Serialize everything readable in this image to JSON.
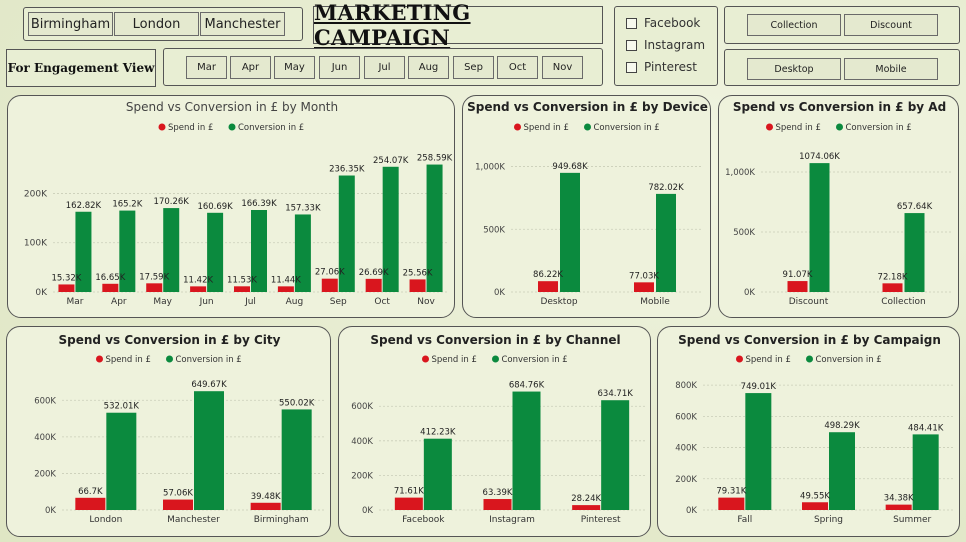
{
  "header": {
    "title": "MARKETING CAMPAIGN",
    "engagement_label": "For Engagement View"
  },
  "filters": {
    "cities": [
      "Birmingham",
      "London",
      "Manchester"
    ],
    "months": [
      "Mar",
      "Apr",
      "May",
      "Jun",
      "Jul",
      "Aug",
      "Sep",
      "Oct",
      "Nov"
    ],
    "channels": [
      "Facebook",
      "Instagram",
      "Pinterest"
    ],
    "ads": [
      "Collection",
      "Discount"
    ],
    "devices": [
      "Desktop",
      "Mobile"
    ]
  },
  "colors": {
    "spend": "#d9161e",
    "conversion": "#0b8a3e"
  },
  "legend": {
    "spend": "Spend in £",
    "conversion": "Conversion in £"
  },
  "chart_data": [
    {
      "type": "bar",
      "title": "Spend vs Conversion in £ by Month",
      "categories": [
        "Mar",
        "Apr",
        "May",
        "Jun",
        "Jul",
        "Aug",
        "Sep",
        "Oct",
        "Nov"
      ],
      "series": [
        {
          "name": "Spend in £",
          "values": [
            15320,
            16650,
            17590,
            11420,
            11530,
            11440,
            27060,
            26690,
            25560
          ],
          "labels": [
            "15.32K",
            "16.65K",
            "17.59K",
            "11.42K",
            "11.53K",
            "11.44K",
            "27.06K",
            "26.69K",
            "25.56K"
          ]
        },
        {
          "name": "Conversion in £",
          "values": [
            162820,
            165200,
            170260,
            160690,
            166390,
            157330,
            236350,
            254070,
            258590
          ],
          "labels": [
            "162.82K",
            "165.2K",
            "170.26K",
            "160.69K",
            "166.39K",
            "157.33K",
            "236.35K",
            "254.07K",
            "258.59K"
          ]
        }
      ],
      "ylim": [
        0,
        280000
      ],
      "yticks": [
        0,
        100000,
        200000
      ],
      "yticklabels": [
        "0K",
        "100K",
        "200K"
      ],
      "grid": true,
      "legend_position": "top-center"
    },
    {
      "type": "bar",
      "title": "Spend vs Conversion in £ by Device",
      "categories": [
        "Desktop",
        "Mobile"
      ],
      "series": [
        {
          "name": "Spend in £",
          "values": [
            86220,
            77030
          ],
          "labels": [
            "86.22K",
            "77.03K"
          ]
        },
        {
          "name": "Conversion in £",
          "values": [
            949680,
            782020
          ],
          "labels": [
            "949.68K",
            "782.02K"
          ]
        }
      ],
      "ylim": [
        0,
        1100000
      ],
      "yticks": [
        0,
        500000,
        1000000
      ],
      "yticklabels": [
        "0K",
        "500K",
        "1,000K"
      ],
      "grid": true,
      "legend_position": "top-center"
    },
    {
      "type": "bar",
      "title": "Spend vs Conversion in £ by Ad",
      "categories": [
        "Discount",
        "Collection"
      ],
      "series": [
        {
          "name": "Spend in £",
          "values": [
            91070,
            72180
          ],
          "labels": [
            "91.07K",
            "72.18K"
          ]
        },
        {
          "name": "Conversion in £",
          "values": [
            1074060,
            657640
          ],
          "labels": [
            "1074.06K",
            "657.64K"
          ]
        }
      ],
      "ylim": [
        0,
        1150000
      ],
      "yticks": [
        0,
        500000,
        1000000
      ],
      "yticklabels": [
        "0K",
        "500K",
        "1,000K"
      ],
      "grid": true,
      "legend_position": "top-center"
    },
    {
      "type": "bar",
      "title": "Spend vs Conversion in £ by City",
      "categories": [
        "London",
        "Manchester",
        "Birmingham"
      ],
      "series": [
        {
          "name": "Spend in £",
          "values": [
            66700,
            57060,
            39480
          ],
          "labels": [
            "66.7K",
            "57.06K",
            "39.48K"
          ]
        },
        {
          "name": "Conversion in £",
          "values": [
            532010,
            649670,
            550020
          ],
          "labels": [
            "532.01K",
            "649.67K",
            "550.02K"
          ]
        }
      ],
      "ylim": [
        0,
        700000
      ],
      "yticks": [
        0,
        200000,
        400000,
        600000
      ],
      "yticklabels": [
        "0K",
        "200K",
        "400K",
        "600K"
      ],
      "grid": true,
      "legend_position": "top-center"
    },
    {
      "type": "bar",
      "title": "Spend vs Conversion in £ by Channel",
      "categories": [
        "Facebook",
        "Instagram",
        "Pinterest"
      ],
      "series": [
        {
          "name": "Spend in £",
          "values": [
            71610,
            63390,
            28240
          ],
          "labels": [
            "71.61K",
            "63.39K",
            "28.24K"
          ]
        },
        {
          "name": "Conversion in £",
          "values": [
            412230,
            684760,
            634710
          ],
          "labels": [
            "412.23K",
            "684.76K",
            "634.71K"
          ]
        }
      ],
      "ylim": [
        0,
        740000
      ],
      "yticks": [
        0,
        200000,
        400000,
        600000
      ],
      "yticklabels": [
        "0K",
        "200K",
        "400K",
        "600K"
      ],
      "grid": true,
      "legend_position": "top-center"
    },
    {
      "type": "bar",
      "title": "Spend vs Conversion in £ by Campaign",
      "categories": [
        "Fall",
        "Spring",
        "Summer"
      ],
      "series": [
        {
          "name": "Spend in £",
          "values": [
            79310,
            49550,
            34380
          ],
          "labels": [
            "79.31K",
            "49.55K",
            "34.38K"
          ]
        },
        {
          "name": "Conversion in £",
          "values": [
            749010,
            498290,
            484410
          ],
          "labels": [
            "749.01K",
            "498.29K",
            "484.41K"
          ]
        }
      ],
      "ylim": [
        0,
        820000
      ],
      "yticks": [
        0,
        200000,
        400000,
        600000,
        800000
      ],
      "yticklabels": [
        "0K",
        "200K",
        "400K",
        "600K",
        "800K"
      ],
      "grid": true,
      "legend_position": "top-center"
    }
  ]
}
